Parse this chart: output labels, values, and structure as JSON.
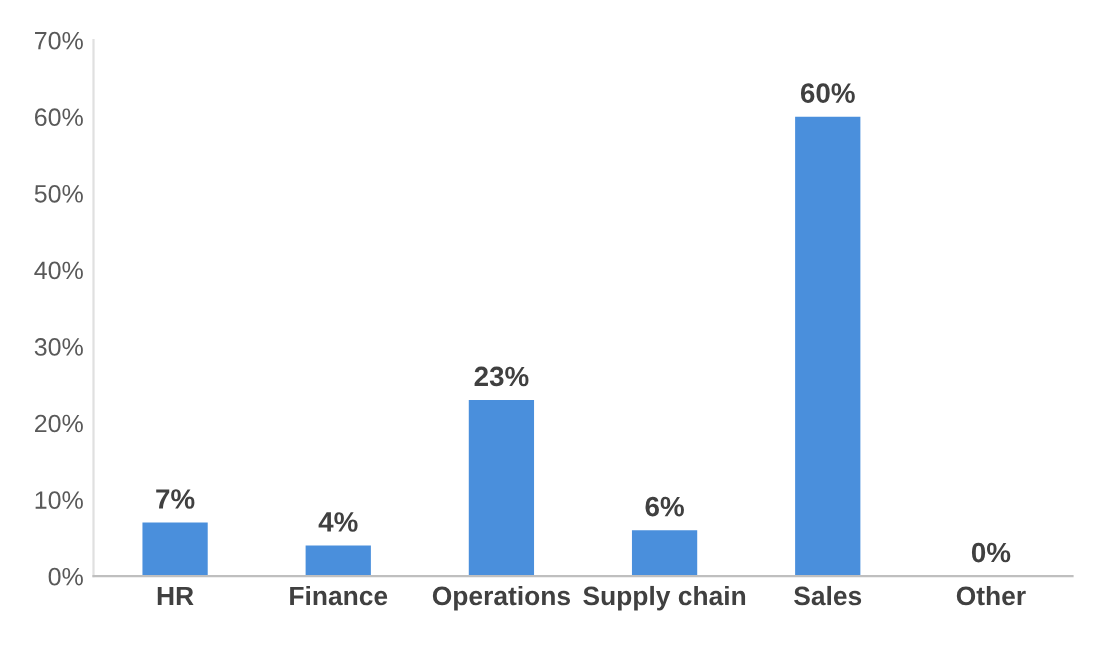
{
  "chart_data": {
    "type": "bar",
    "categories": [
      "HR",
      "Finance",
      "Operations",
      "Supply chain",
      "Sales",
      "Other"
    ],
    "values": [
      7,
      4,
      23,
      6,
      60,
      0
    ],
    "value_labels": [
      "7%",
      "4%",
      "23%",
      "6%",
      "60%",
      "0%"
    ],
    "color": "#4a8fdc",
    "ylim": [
      0,
      70
    ],
    "yticks": [
      {
        "value": 0,
        "label": "0%"
      },
      {
        "value": 10,
        "label": "10%"
      },
      {
        "value": 20,
        "label": "20%"
      },
      {
        "value": 30,
        "label": "30%"
      },
      {
        "value": 40,
        "label": "40%"
      },
      {
        "value": 50,
        "label": "50%"
      },
      {
        "value": 60,
        "label": "60%"
      },
      {
        "value": 70,
        "label": "70%"
      }
    ],
    "grid": false,
    "legend": false
  }
}
